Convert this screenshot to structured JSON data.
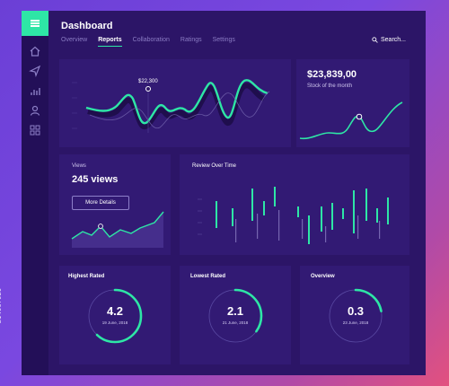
{
  "header": {
    "title": "Dashboard",
    "tabs": [
      "Overview",
      "Reports",
      "Collaboration",
      "Ratings",
      "Settings"
    ],
    "active_tab": "Reports",
    "search_label": "Search..."
  },
  "sidebar": {
    "icons": [
      "menu-icon",
      "home-icon",
      "send-icon",
      "bar-chart-icon",
      "user-icon",
      "grid-icon"
    ]
  },
  "main_chart": {
    "marker_label": "$22,300"
  },
  "stock": {
    "value": "$23,839,00",
    "label": "Stock of the month"
  },
  "views": {
    "label": "Views",
    "value": "245 views",
    "button": "More Details"
  },
  "review": {
    "title": "Review Over Time"
  },
  "ratings": [
    {
      "title": "Highest Rated",
      "value": "4.2",
      "date": "19 June, 2018",
      "fraction": 0.62
    },
    {
      "title": "Lowest Rated",
      "value": "2.1",
      "date": "21 June, 2018",
      "fraction": 0.35
    },
    {
      "title": "Overview",
      "value": "0.3",
      "date": "23 June, 2018",
      "fraction": 0.22
    }
  ],
  "watermark": "214667020",
  "colors": {
    "accent": "#2ee6a6",
    "panel": "#321a74",
    "background": "#2c1567"
  }
}
